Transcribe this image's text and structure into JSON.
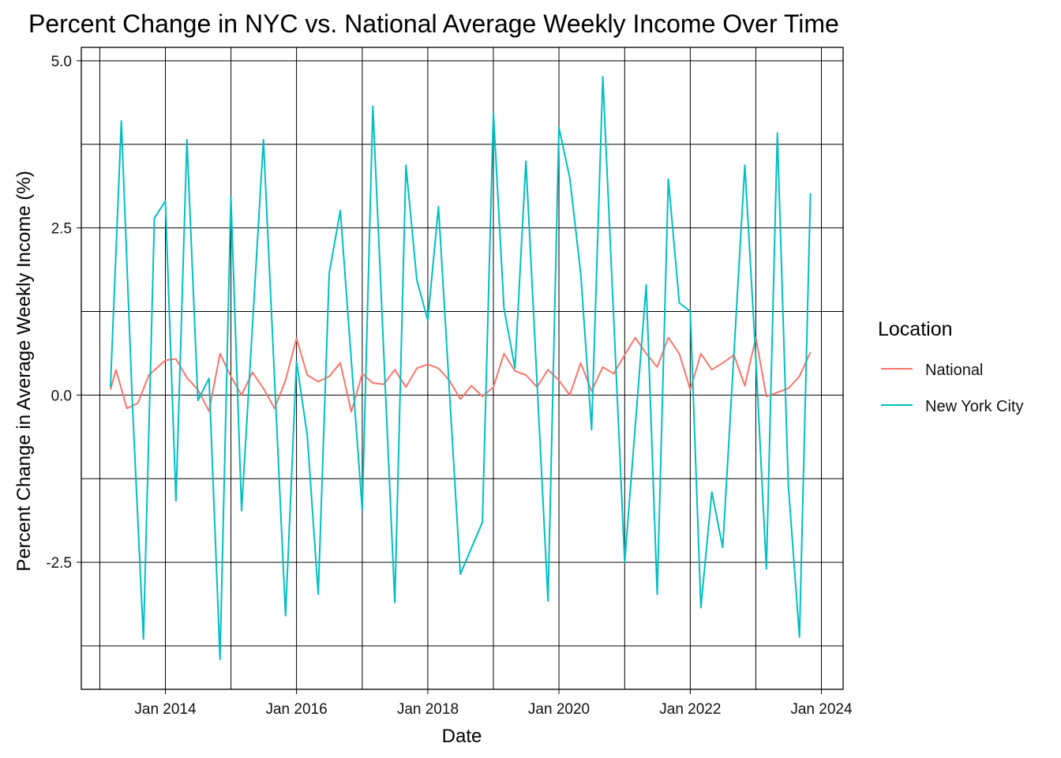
{
  "chart_data": {
    "type": "line",
    "title": "Percent Change in NYC vs. National Average Weekly Income Over Time",
    "xlabel": "Date",
    "ylabel": "Percent Change in Average Weekly Income (%)",
    "x_ticks": [
      "Jan 2014",
      "Jan 2016",
      "Jan 2018",
      "Jan 2020",
      "Jan 2022",
      "Jan 2024"
    ],
    "y_ticks": [
      "-2.5",
      "0.0",
      "2.5",
      "5.0"
    ],
    "ylim": [
      -4.4,
      5.2
    ],
    "xlim": [
      "2012-09-20",
      "2024-05-01"
    ],
    "grid": true,
    "legend": {
      "title": "Location",
      "position": "right"
    },
    "series": [
      {
        "name": "National",
        "color": "#F8766D",
        "points": [
          [
            "2013-03-01",
            0.08
          ],
          [
            "2013-04-01",
            0.38
          ],
          [
            "2013-06-01",
            -0.2
          ],
          [
            "2013-08-01",
            -0.12
          ],
          [
            "2013-10-01",
            0.3
          ],
          [
            "2014-01-01",
            0.52
          ],
          [
            "2014-03-01",
            0.54
          ],
          [
            "2014-05-01",
            0.26
          ],
          [
            "2014-07-01",
            0.08
          ],
          [
            "2014-09-01",
            -0.24
          ],
          [
            "2014-11-01",
            0.62
          ],
          [
            "2015-01-01",
            0.28
          ],
          [
            "2015-03-01",
            0.0
          ],
          [
            "2015-05-01",
            0.34
          ],
          [
            "2015-07-01",
            0.1
          ],
          [
            "2015-09-01",
            -0.2
          ],
          [
            "2015-11-01",
            0.22
          ],
          [
            "2016-01-01",
            0.85
          ],
          [
            "2016-03-01",
            0.3
          ],
          [
            "2016-05-01",
            0.2
          ],
          [
            "2016-07-01",
            0.28
          ],
          [
            "2016-09-01",
            0.48
          ],
          [
            "2016-11-01",
            -0.25
          ],
          [
            "2017-01-01",
            0.32
          ],
          [
            "2017-03-01",
            0.18
          ],
          [
            "2017-05-01",
            0.16
          ],
          [
            "2017-07-01",
            0.38
          ],
          [
            "2017-09-01",
            0.12
          ],
          [
            "2017-11-01",
            0.4
          ],
          [
            "2018-01-01",
            0.46
          ],
          [
            "2018-03-01",
            0.4
          ],
          [
            "2018-05-01",
            0.22
          ],
          [
            "2018-07-01",
            -0.06
          ],
          [
            "2018-09-01",
            0.14
          ],
          [
            "2018-11-01",
            -0.02
          ],
          [
            "2019-01-01",
            0.12
          ],
          [
            "2019-03-01",
            0.62
          ],
          [
            "2019-05-01",
            0.36
          ],
          [
            "2019-07-01",
            0.3
          ],
          [
            "2019-09-01",
            0.12
          ],
          [
            "2019-11-01",
            0.38
          ],
          [
            "2020-01-01",
            0.22
          ],
          [
            "2020-03-01",
            0.0
          ],
          [
            "2020-05-01",
            0.48
          ],
          [
            "2020-07-01",
            0.06
          ],
          [
            "2020-09-01",
            0.42
          ],
          [
            "2020-11-01",
            0.32
          ],
          [
            "2021-01-01",
            0.6
          ],
          [
            "2021-03-01",
            0.86
          ],
          [
            "2021-05-01",
            0.62
          ],
          [
            "2021-07-01",
            0.42
          ],
          [
            "2021-09-01",
            0.86
          ],
          [
            "2021-11-01",
            0.62
          ],
          [
            "2022-01-01",
            0.08
          ],
          [
            "2022-03-01",
            0.62
          ],
          [
            "2022-05-01",
            0.38
          ],
          [
            "2022-07-01",
            0.48
          ],
          [
            "2022-09-01",
            0.6
          ],
          [
            "2022-11-01",
            0.14
          ],
          [
            "2023-01-01",
            0.86
          ],
          [
            "2023-03-01",
            -0.02
          ],
          [
            "2023-05-01",
            0.04
          ],
          [
            "2023-07-01",
            0.1
          ],
          [
            "2023-09-01",
            0.28
          ],
          [
            "2023-11-01",
            0.64
          ]
        ]
      },
      {
        "name": "New York City",
        "color": "#00BFC4",
        "points": [
          [
            "2013-03-01",
            0.12
          ],
          [
            "2013-05-01",
            4.1
          ],
          [
            "2013-07-01",
            -0.1
          ],
          [
            "2013-09-01",
            -3.65
          ],
          [
            "2013-11-01",
            2.65
          ],
          [
            "2014-01-01",
            2.9
          ],
          [
            "2014-03-01",
            -1.58
          ],
          [
            "2014-05-01",
            3.82
          ],
          [
            "2014-07-01",
            -0.08
          ],
          [
            "2014-09-01",
            0.25
          ],
          [
            "2014-11-01",
            -3.95
          ],
          [
            "2015-01-01",
            2.96
          ],
          [
            "2015-03-01",
            -1.73
          ],
          [
            "2015-07-01",
            3.82
          ],
          [
            "2015-11-01",
            -3.3
          ],
          [
            "2016-01-01",
            0.5
          ],
          [
            "2016-03-01",
            -0.6
          ],
          [
            "2016-05-01",
            -2.98
          ],
          [
            "2016-07-01",
            1.82
          ],
          [
            "2016-09-01",
            2.76
          ],
          [
            "2017-01-01",
            -1.72
          ],
          [
            "2017-03-01",
            4.32
          ],
          [
            "2017-07-01",
            -3.1
          ],
          [
            "2017-09-01",
            3.44
          ],
          [
            "2017-11-01",
            1.72
          ],
          [
            "2018-01-01",
            1.12
          ],
          [
            "2018-03-01",
            2.82
          ],
          [
            "2018-07-01",
            -2.68
          ],
          [
            "2018-11-01",
            -1.9
          ],
          [
            "2019-01-01",
            4.22
          ],
          [
            "2019-03-01",
            1.3
          ],
          [
            "2019-05-01",
            0.4
          ],
          [
            "2019-07-01",
            3.5
          ],
          [
            "2019-11-01",
            -3.08
          ],
          [
            "2020-01-01",
            4.0
          ],
          [
            "2020-03-01",
            3.25
          ],
          [
            "2020-05-01",
            1.82
          ],
          [
            "2020-07-01",
            -0.52
          ],
          [
            "2020-09-01",
            4.76
          ],
          [
            "2021-01-01",
            -2.5
          ],
          [
            "2021-05-01",
            1.65
          ],
          [
            "2021-07-01",
            -2.98
          ],
          [
            "2021-09-01",
            3.23
          ],
          [
            "2021-11-01",
            1.38
          ],
          [
            "2022-01-01",
            1.25
          ],
          [
            "2022-03-01",
            -3.18
          ],
          [
            "2022-05-01",
            -1.45
          ],
          [
            "2022-07-01",
            -2.28
          ],
          [
            "2022-11-01",
            3.44
          ],
          [
            "2023-01-01",
            0.55
          ],
          [
            "2023-03-01",
            -2.6
          ],
          [
            "2023-05-01",
            3.92
          ],
          [
            "2023-07-01",
            -1.35
          ],
          [
            "2023-09-01",
            -3.62
          ],
          [
            "2023-11-01",
            3.02
          ]
        ]
      }
    ]
  }
}
